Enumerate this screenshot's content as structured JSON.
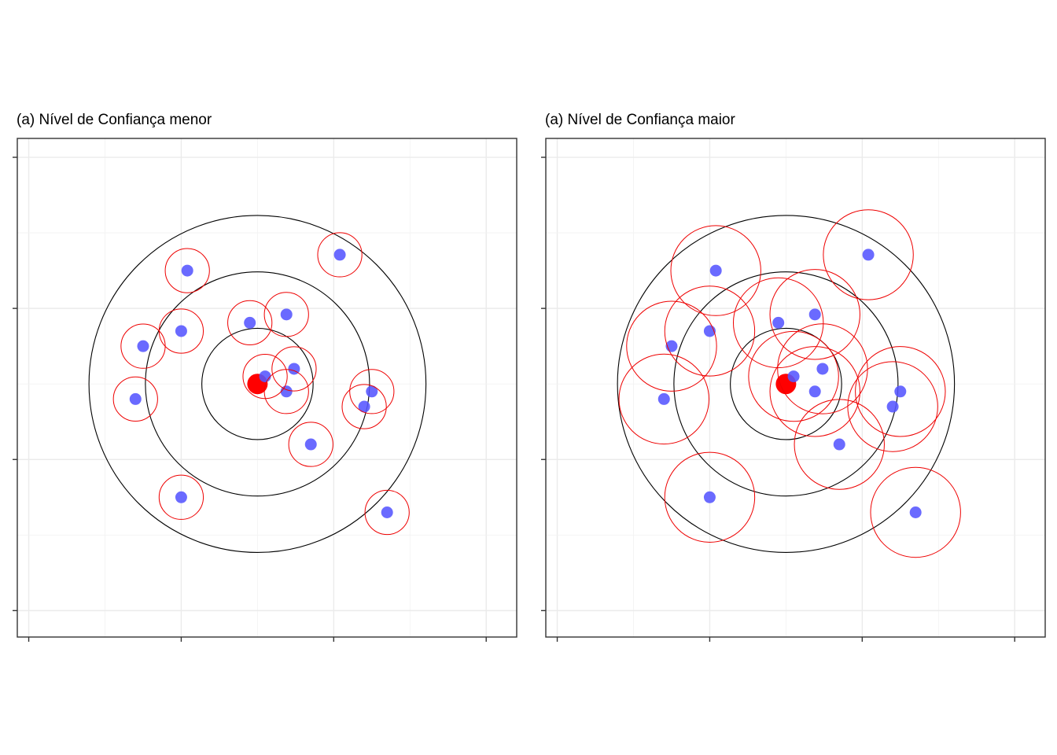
{
  "colors": {
    "target": "#ff0000",
    "point": "#5555ff",
    "point_circle": "#ee0000",
    "ring": "#000000",
    "grid": "#ebebeb",
    "border": "#333333"
  },
  "chart_data": [
    {
      "type": "scatter",
      "title": "(a) Nível de Confiança menor",
      "xlabel": "",
      "ylabel": "",
      "xlim": [
        -3.15,
        3.4
      ],
      "ylim": [
        -3.35,
        3.25
      ],
      "tick_labels_visible": false,
      "grid": true,
      "target": {
        "x": 0,
        "y": 0
      },
      "rings_radius": [
        0.73,
        1.47,
        2.21
      ],
      "point_circle_radius": 0.29,
      "points": [
        {
          "x": 1.08,
          "y": 1.71
        },
        {
          "x": -0.92,
          "y": 1.5
        },
        {
          "x": 0.38,
          "y": 0.92
        },
        {
          "x": -0.1,
          "y": 0.81
        },
        {
          "x": -1.0,
          "y": 0.7
        },
        {
          "x": -1.5,
          "y": 0.5
        },
        {
          "x": 0.48,
          "y": 0.2
        },
        {
          "x": 0.1,
          "y": 0.1
        },
        {
          "x": 0.38,
          "y": -0.1
        },
        {
          "x": 1.5,
          "y": -0.1
        },
        {
          "x": -1.6,
          "y": -0.2
        },
        {
          "x": 1.4,
          "y": -0.3
        },
        {
          "x": 0.7,
          "y": -0.8
        },
        {
          "x": -1.0,
          "y": -1.5
        },
        {
          "x": 1.7,
          "y": -1.7
        }
      ]
    },
    {
      "type": "scatter",
      "title": "(a) Nível de Confiança maior",
      "xlabel": "",
      "ylabel": "",
      "xlim": [
        -3.15,
        3.4
      ],
      "ylim": [
        -3.35,
        3.25
      ],
      "tick_labels_visible": false,
      "grid": true,
      "target": {
        "x": 0,
        "y": 0
      },
      "rings_radius": [
        0.73,
        1.47,
        2.21
      ],
      "point_circle_radius": 0.59,
      "points": [
        {
          "x": 1.08,
          "y": 1.71
        },
        {
          "x": -0.92,
          "y": 1.5
        },
        {
          "x": 0.38,
          "y": 0.92
        },
        {
          "x": -0.1,
          "y": 0.81
        },
        {
          "x": -1.0,
          "y": 0.7
        },
        {
          "x": -1.5,
          "y": 0.5
        },
        {
          "x": 0.48,
          "y": 0.2
        },
        {
          "x": 0.1,
          "y": 0.1
        },
        {
          "x": 0.38,
          "y": -0.1
        },
        {
          "x": 1.5,
          "y": -0.1
        },
        {
          "x": -1.6,
          "y": -0.2
        },
        {
          "x": 1.4,
          "y": -0.3
        },
        {
          "x": 0.7,
          "y": -0.8
        },
        {
          "x": -1.0,
          "y": -1.5
        },
        {
          "x": 1.7,
          "y": -1.7
        }
      ]
    }
  ]
}
